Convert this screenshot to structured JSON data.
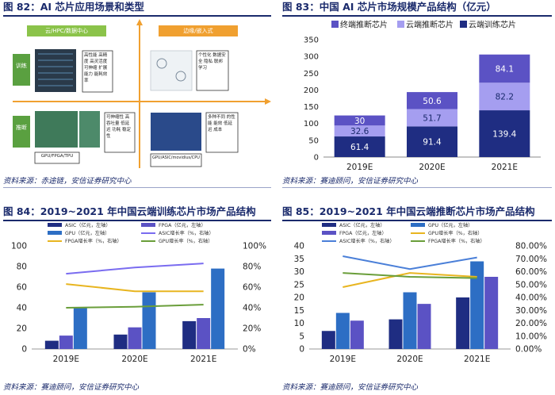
{
  "panels": {
    "p82": {
      "title": "图 82：AI 芯片应用场景和类型",
      "source": "资料来源：赤途链，安信证券研究中心",
      "diagram": {
        "cloud_label": "云/HPC/数据中心",
        "edge_label": "边缘/嵌入式",
        "train_label": "训练",
        "infer_label": "推断",
        "cloud_train_text": "高性能 高精度 高灵活度 可伸缩 扩展能力 能耗效率",
        "edge_train_text": "个性化 数据安全 隐私 联邦 学习",
        "cloud_infer_text": "可伸缩性 高吞吐量 低延迟 功耗 稳定性",
        "edge_infer_text": "多种不同 的性能 能效 低延迟 成本",
        "cloud_chip_label": "GPU/FPGA/TPU",
        "edge_chip_label": "GPU/ASIC/movidius/CPU"
      }
    },
    "p83": {
      "title": "图 83：中国 AI 芯片市场规模产品结构（亿元）",
      "source": "资料来源：赛迪顾问，安信证券研究中心"
    },
    "p84": {
      "title": "图 84：2019~2021 年中国云端训练芯片市场产品结构",
      "source": "资料来源：赛迪顾问，安信证券研究中心"
    },
    "p85": {
      "title": "图 85：2019~2021 年中国云端推断芯片市场产品结构",
      "source": "资料来源：赛迪顾问，安信证券研究中心"
    }
  },
  "colors": {
    "navy": "#1f2d82",
    "mid": "#5b52c4",
    "light": "#a59ef0",
    "blue": "#2d6ec4",
    "violet": "#7a6cf0",
    "gold": "#e8b520",
    "green": "#6a9e3a",
    "lineblue": "#4a7fd8",
    "header": "#1a2a6c",
    "orange": "#f0a030"
  },
  "chart_data": [
    {
      "id": "p83",
      "type": "bar",
      "stacked": true,
      "categories": [
        "2019E",
        "2020E",
        "2021E"
      ],
      "series": [
        {
          "name": "云端训练芯片",
          "values": [
            61.4,
            91.4,
            139.4
          ]
        },
        {
          "name": "云端推断芯片",
          "values": [
            32.6,
            51.7,
            82.2
          ]
        },
        {
          "name": "终端推断芯片",
          "values": [
            30,
            50.6,
            84.1
          ]
        }
      ],
      "legend_order": [
        "终端推断芯片",
        "云端推断芯片",
        "云端训练芯片"
      ],
      "yticks": [
        "0",
        "50",
        "100",
        "150",
        "200",
        "250",
        "300",
        "350"
      ],
      "ylim": [
        0,
        350
      ]
    },
    {
      "id": "p84",
      "type": "bar",
      "categories": [
        "2019E",
        "2020E",
        "2021E"
      ],
      "bar_series": [
        {
          "name": "ASIC（亿元，左轴）",
          "values": [
            8,
            14,
            27
          ]
        },
        {
          "name": "FPGA（亿元，左轴）",
          "values": [
            13,
            21,
            30
          ]
        },
        {
          "name": "GPU（亿元，左轴）",
          "values": [
            40,
            55,
            78
          ]
        }
      ],
      "line_series": [
        {
          "name": "ASIC增长率（%，右轴）",
          "values": [
            73,
            79,
            83
          ]
        },
        {
          "name": "FPGA增长率（%，右轴）",
          "values": [
            63,
            56,
            56
          ]
        },
        {
          "name": "GPU增长率（%，右轴）",
          "values": [
            40,
            41,
            43
          ]
        }
      ],
      "yticks_left": [
        "0",
        "20",
        "40",
        "60",
        "80",
        "100"
      ],
      "yticks_right": [
        "0%",
        "20%",
        "40%",
        "60%",
        "80%",
        "100%"
      ],
      "ylim_left": [
        0,
        100
      ],
      "ylim_right": [
        0,
        100
      ]
    },
    {
      "id": "p85",
      "type": "bar",
      "categories": [
        "2019E",
        "2020E",
        "2021E"
      ],
      "bar_series": [
        {
          "name": "ASIC（亿元，左轴）",
          "values": [
            7,
            11.5,
            20
          ]
        },
        {
          "name": "GPU（亿元，左轴）",
          "values": [
            14,
            22,
            34
          ]
        },
        {
          "name": "FPGA（亿元，左轴）",
          "values": [
            11,
            17.5,
            28
          ]
        }
      ],
      "line_series": [
        {
          "name": "ASIC增长率（%，右轴）",
          "values": [
            72,
            62,
            71
          ]
        },
        {
          "name": "GPU增长率（%，右轴）",
          "values": [
            48,
            59,
            56
          ]
        },
        {
          "name": "FPGA增长率（%，右轴）",
          "values": [
            59,
            56,
            55
          ]
        }
      ],
      "yticks_left": [
        "0",
        "5",
        "10",
        "15",
        "20",
        "25",
        "30",
        "35",
        "40"
      ],
      "yticks_right": [
        "0.00%",
        "10.00%",
        "20.00%",
        "30.00%",
        "40.00%",
        "50.00%",
        "60.00%",
        "70.00%",
        "80.00%"
      ],
      "ylim_left": [
        0,
        40
      ],
      "ylim_right": [
        0,
        80
      ]
    }
  ]
}
